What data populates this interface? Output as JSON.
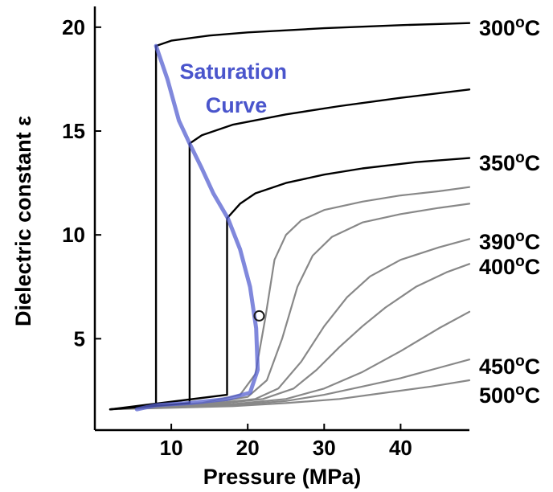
{
  "chart_data": {
    "type": "line",
    "title": "",
    "xlabel": "Pressure (MPa)",
    "ylabel": "Dielectric constant ε",
    "xlim": [
      0,
      49
    ],
    "ylim": [
      0.6,
      21
    ],
    "x_ticks": [
      10,
      20,
      30,
      40
    ],
    "y_ticks": [
      5,
      10,
      15,
      20
    ],
    "grid": false,
    "annotation": {
      "text": [
        "Saturation",
        "Curve"
      ],
      "color": "#4a55cc"
    },
    "temperature_labels": [
      {
        "text": "300°C",
        "base": "300",
        "sup": "o",
        "unit": "C",
        "y": 20.0
      },
      {
        "text": "350°C",
        "base": "350",
        "sup": "o",
        "unit": "C",
        "y": 13.5
      },
      {
        "text": "390°C",
        "base": "390",
        "sup": "o",
        "unit": "C",
        "y": 9.7
      },
      {
        "text": "400°C",
        "base": "400",
        "sup": "o",
        "unit": "C",
        "y": 8.5
      },
      {
        "text": "450°C",
        "base": "450",
        "sup": "o",
        "unit": "C",
        "y": 3.7
      },
      {
        "text": "500°C",
        "base": "500",
        "sup": "o",
        "unit": "C",
        "y": 2.3
      }
    ],
    "saturation_curve": {
      "color": "#5560d0",
      "points": [
        [
          8,
          19.1
        ],
        [
          9.5,
          17.5
        ],
        [
          11,
          15.5
        ],
        [
          12.4,
          14.4
        ],
        [
          14,
          13.2
        ],
        [
          15.5,
          12.0
        ],
        [
          17.4,
          10.8
        ],
        [
          19,
          9.3
        ],
        [
          20.3,
          7.5
        ],
        [
          21.1,
          5.5
        ],
        [
          21.3,
          3.5
        ],
        [
          20.3,
          2.4
        ],
        [
          17.3,
          2.1
        ],
        [
          12.4,
          1.9
        ],
        [
          8,
          1.8
        ],
        [
          5.5,
          1.6
        ]
      ]
    },
    "critical_point": {
      "x": 21.5,
      "y": 6.1
    },
    "series": [
      {
        "color": "#000000",
        "points": [
          [
            2,
            1.6
          ],
          [
            8,
            1.8
          ],
          [
            8,
            19.1
          ],
          [
            10,
            19.35
          ],
          [
            15,
            19.6
          ],
          [
            20,
            19.75
          ],
          [
            30,
            19.95
          ],
          [
            40,
            20.1
          ],
          [
            49,
            20.2
          ]
        ]
      },
      {
        "color": "#000000",
        "points": [
          [
            2,
            1.6
          ],
          [
            12.4,
            1.9
          ],
          [
            12.4,
            14.4
          ],
          [
            14,
            14.8
          ],
          [
            18,
            15.3
          ],
          [
            25,
            15.8
          ],
          [
            32,
            16.2
          ],
          [
            40,
            16.6
          ],
          [
            49,
            17.0
          ]
        ]
      },
      {
        "color": "#000000",
        "points": [
          [
            2,
            1.6
          ],
          [
            17.3,
            2.3
          ],
          [
            17.3,
            10.8
          ],
          [
            19,
            11.5
          ],
          [
            21,
            12.0
          ],
          [
            25,
            12.5
          ],
          [
            30,
            12.9
          ],
          [
            35,
            13.2
          ],
          [
            42,
            13.5
          ],
          [
            49,
            13.7
          ]
        ]
      },
      {
        "color": "#888888",
        "points": [
          [
            2,
            1.6
          ],
          [
            14,
            1.9
          ],
          [
            19,
            2.3
          ],
          [
            21,
            3.3
          ],
          [
            22.3,
            6.0
          ],
          [
            23.5,
            8.8
          ],
          [
            25,
            10.0
          ],
          [
            27,
            10.7
          ],
          [
            30,
            11.2
          ],
          [
            35,
            11.6
          ],
          [
            40,
            11.9
          ],
          [
            45,
            12.1
          ],
          [
            49,
            12.3
          ]
        ]
      },
      {
        "color": "#888888",
        "points": [
          [
            2,
            1.6
          ],
          [
            15,
            1.9
          ],
          [
            20,
            2.2
          ],
          [
            22.5,
            3.0
          ],
          [
            24.5,
            5.0
          ],
          [
            26.5,
            7.5
          ],
          [
            28.5,
            9.0
          ],
          [
            31,
            9.9
          ],
          [
            35,
            10.6
          ],
          [
            40,
            11.0
          ],
          [
            45,
            11.3
          ],
          [
            49,
            11.5
          ]
        ]
      },
      {
        "color": "#888888",
        "points": [
          [
            2,
            1.6
          ],
          [
            16,
            1.9
          ],
          [
            21,
            2.1
          ],
          [
            24,
            2.6
          ],
          [
            27,
            3.9
          ],
          [
            30,
            5.6
          ],
          [
            33,
            7.0
          ],
          [
            36,
            8.0
          ],
          [
            40,
            8.8
          ],
          [
            45,
            9.4
          ],
          [
            49,
            9.8
          ]
        ]
      },
      {
        "color": "#888888",
        "points": [
          [
            2,
            1.6
          ],
          [
            16,
            1.85
          ],
          [
            22,
            2.1
          ],
          [
            26,
            2.6
          ],
          [
            29,
            3.5
          ],
          [
            32,
            4.6
          ],
          [
            35,
            5.6
          ],
          [
            38,
            6.5
          ],
          [
            42,
            7.5
          ],
          [
            46,
            8.2
          ],
          [
            49,
            8.6
          ]
        ]
      },
      {
        "color": "#888888",
        "points": [
          [
            2,
            1.6
          ],
          [
            18,
            1.85
          ],
          [
            25,
            2.1
          ],
          [
            30,
            2.6
          ],
          [
            35,
            3.4
          ],
          [
            40,
            4.4
          ],
          [
            45,
            5.5
          ],
          [
            49,
            6.3
          ]
        ]
      },
      {
        "color": "#888888",
        "points": [
          [
            2,
            1.6
          ],
          [
            18,
            1.8
          ],
          [
            25,
            2.0
          ],
          [
            30,
            2.3
          ],
          [
            35,
            2.7
          ],
          [
            40,
            3.1
          ],
          [
            45,
            3.6
          ],
          [
            49,
            4.0
          ]
        ]
      },
      {
        "color": "#888888",
        "points": [
          [
            2,
            1.6
          ],
          [
            18,
            1.75
          ],
          [
            25,
            1.9
          ],
          [
            32,
            2.1
          ],
          [
            38,
            2.4
          ],
          [
            44,
            2.7
          ],
          [
            49,
            3.0
          ]
        ]
      }
    ]
  }
}
